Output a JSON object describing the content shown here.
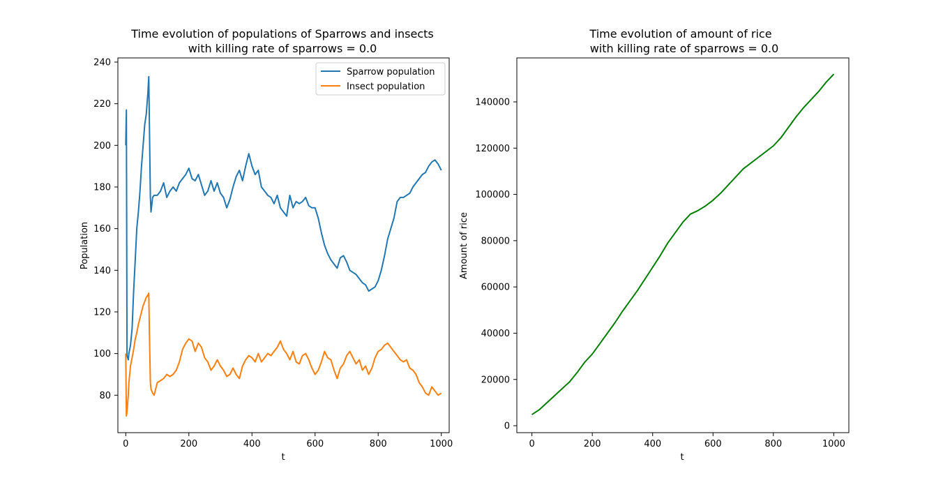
{
  "chart_data": [
    {
      "type": "line",
      "title": "Time evolution of populations of Sparrows and insects",
      "subtitle": "with killing rate of sparrows = 0.0",
      "xlabel": "t",
      "ylabel": "Population",
      "xlim": [
        -25,
        1025
      ],
      "ylim": [
        62,
        242
      ],
      "xticks": [
        "0",
        "200",
        "400",
        "600",
        "800",
        "1000"
      ],
      "yticks": [
        "80",
        "100",
        "120",
        "140",
        "160",
        "180",
        "200",
        "220",
        "240"
      ],
      "legend_position": "top-right",
      "grid": false,
      "series": [
        {
          "name": "Sparrow population",
          "color": "#1f77b4",
          "x": [
            0,
            2,
            4,
            6,
            8,
            10,
            15,
            20,
            25,
            30,
            35,
            40,
            45,
            50,
            55,
            60,
            65,
            70,
            73,
            75,
            78,
            80,
            85,
            90,
            100,
            110,
            120,
            130,
            140,
            150,
            160,
            170,
            180,
            190,
            200,
            210,
            220,
            230,
            240,
            250,
            260,
            270,
            280,
            290,
            300,
            310,
            320,
            330,
            340,
            350,
            360,
            370,
            380,
            390,
            400,
            410,
            420,
            430,
            440,
            450,
            460,
            470,
            480,
            490,
            500,
            510,
            520,
            530,
            540,
            550,
            560,
            570,
            580,
            590,
            600,
            610,
            620,
            630,
            640,
            650,
            660,
            670,
            680,
            690,
            700,
            710,
            720,
            730,
            740,
            750,
            760,
            770,
            780,
            790,
            800,
            810,
            820,
            830,
            840,
            850,
            860,
            870,
            880,
            890,
            900,
            910,
            920,
            930,
            940,
            950,
            960,
            970,
            980,
            990,
            1000
          ],
          "y": [
            200,
            217,
            99,
            98,
            97,
            100,
            104,
            112,
            130,
            145,
            160,
            168,
            178,
            190,
            200,
            210,
            215,
            225,
            233,
            210,
            175,
            168,
            175,
            176,
            176,
            178,
            182,
            175,
            178,
            180,
            178,
            182,
            184,
            186,
            189,
            184,
            183,
            186,
            181,
            176,
            178,
            183,
            178,
            182,
            177,
            175,
            170,
            174,
            180,
            185,
            188,
            183,
            190,
            196,
            190,
            186,
            188,
            180,
            178,
            176,
            175,
            172,
            176,
            170,
            168,
            166,
            176,
            170,
            173,
            172,
            173,
            175,
            171,
            170,
            170,
            165,
            158,
            152,
            148,
            145,
            143,
            141,
            146,
            147,
            144,
            140,
            139,
            138,
            136,
            134,
            133,
            130,
            131,
            132,
            135,
            140,
            147,
            155,
            160,
            165,
            173,
            175,
            175,
            176,
            177,
            180,
            182,
            184,
            186,
            187,
            190,
            192,
            193,
            191,
            188
          ]
        },
        {
          "name": "Insect population",
          "color": "#ff7f0e",
          "x": [
            0,
            2,
            4,
            6,
            8,
            10,
            15,
            20,
            25,
            30,
            35,
            40,
            45,
            50,
            55,
            60,
            65,
            70,
            73,
            75,
            78,
            80,
            85,
            90,
            100,
            110,
            120,
            130,
            140,
            150,
            160,
            170,
            180,
            190,
            200,
            210,
            220,
            230,
            240,
            250,
            260,
            270,
            280,
            290,
            300,
            310,
            320,
            330,
            340,
            350,
            360,
            370,
            380,
            390,
            400,
            410,
            420,
            430,
            440,
            450,
            460,
            470,
            480,
            490,
            500,
            510,
            520,
            530,
            540,
            550,
            560,
            570,
            580,
            590,
            600,
            610,
            620,
            630,
            640,
            650,
            660,
            670,
            680,
            690,
            700,
            710,
            720,
            730,
            740,
            750,
            760,
            770,
            780,
            790,
            800,
            810,
            820,
            830,
            840,
            850,
            860,
            870,
            880,
            890,
            900,
            910,
            920,
            930,
            940,
            950,
            960,
            970,
            980,
            990,
            1000
          ],
          "y": [
            100,
            70,
            72,
            76,
            80,
            86,
            94,
            98,
            102,
            107,
            110,
            114,
            117,
            120,
            123,
            125,
            127,
            128,
            129,
            110,
            86,
            83,
            81,
            80,
            86,
            87,
            88,
            90,
            89,
            90,
            92,
            96,
            102,
            105,
            107,
            106,
            101,
            105,
            103,
            98,
            96,
            92,
            94,
            97,
            94,
            92,
            89,
            90,
            93,
            90,
            88,
            94,
            97,
            99,
            98,
            96,
            100,
            96,
            98,
            100,
            99,
            101,
            103,
            106,
            102,
            100,
            97,
            101,
            96,
            95,
            99,
            100,
            97,
            93,
            90,
            92,
            96,
            101,
            98,
            97,
            92,
            88,
            93,
            95,
            99,
            101,
            98,
            95,
            97,
            92,
            94,
            90,
            93,
            98,
            101,
            102,
            104,
            105,
            103,
            101,
            99,
            97,
            96,
            97,
            93,
            92,
            90,
            86,
            84,
            81,
            80,
            84,
            82,
            80,
            81
          ]
        }
      ]
    },
    {
      "type": "line",
      "title": "Time evolution of amount of rice",
      "subtitle": "with killing rate of sparrows = 0.0",
      "xlabel": "t",
      "ylabel": "Amount of rice",
      "xlim": [
        -50,
        1050
      ],
      "ylim": [
        -3000,
        159000
      ],
      "xticks": [
        "0",
        "200",
        "400",
        "600",
        "800",
        "1000"
      ],
      "yticks": [
        "0",
        "20000",
        "40000",
        "60000",
        "80000",
        "100000",
        "120000",
        "140000"
      ],
      "grid": false,
      "series": [
        {
          "color": "#008000",
          "x": [
            0,
            25,
            50,
            75,
            100,
            125,
            150,
            175,
            200,
            225,
            250,
            275,
            300,
            325,
            350,
            375,
            400,
            425,
            450,
            475,
            500,
            525,
            550,
            575,
            600,
            625,
            650,
            675,
            700,
            725,
            750,
            775,
            800,
            825,
            850,
            875,
            900,
            925,
            950,
            975,
            1000
          ],
          "y": [
            4800,
            7000,
            10000,
            13000,
            16000,
            19000,
            23000,
            27500,
            31000,
            35500,
            40000,
            44500,
            49500,
            54000,
            58500,
            63500,
            68500,
            73500,
            79000,
            83500,
            88000,
            91500,
            93000,
            95000,
            97500,
            100500,
            104000,
            107500,
            111000,
            113500,
            116000,
            118500,
            121000,
            124500,
            129000,
            133500,
            137500,
            141000,
            144500,
            148500,
            152000
          ]
        }
      ]
    }
  ]
}
